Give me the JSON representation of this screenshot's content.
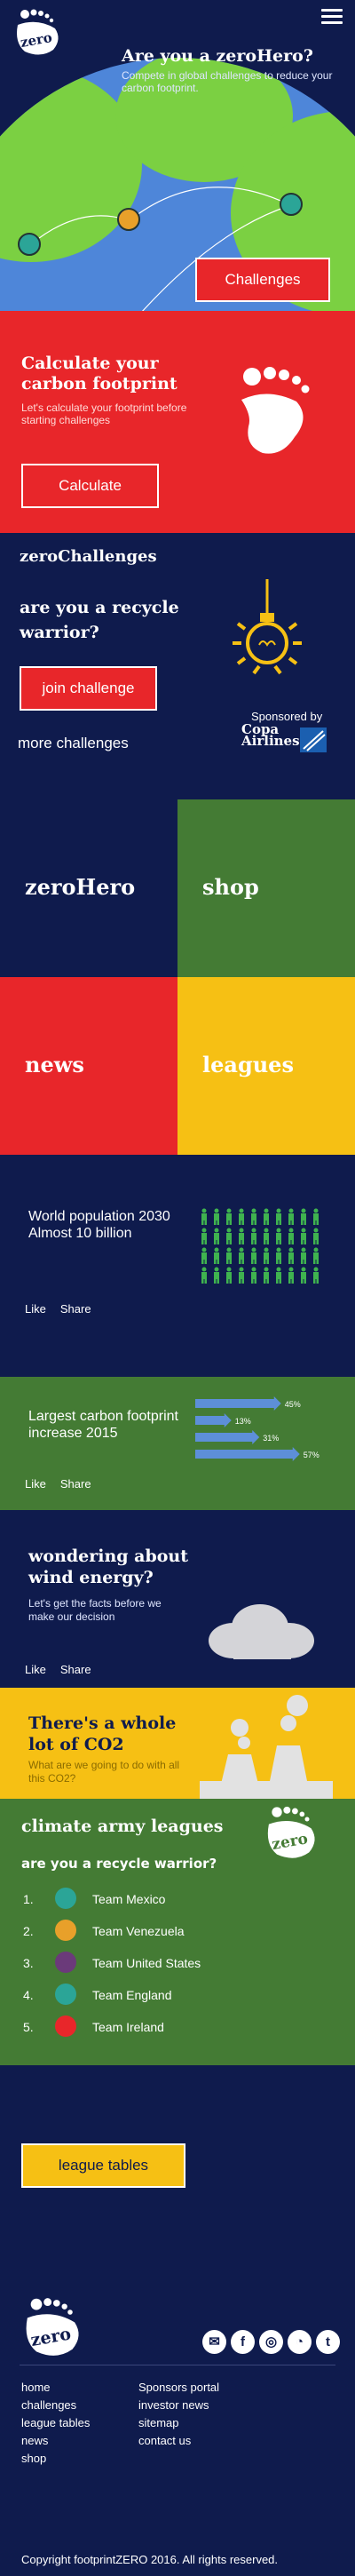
{
  "hero": {
    "title": "Are you a zeroHero?",
    "subtitle": "Compete in global challenges to reduce your carbon footprint.",
    "button": "Challenges"
  },
  "calculator": {
    "title_line1": "Calculate your",
    "title_line2": "carbon footprint",
    "description": "Let's calculate your footprint before starting challenges",
    "button": "Calculate"
  },
  "challenges": {
    "heading": "zeroChallenges",
    "question_line1": "are you a recycle",
    "question_line2": "warrior?",
    "button": "join challenge",
    "more": "more challenges",
    "sponsored_by": "Sponsored by",
    "sponsor_line1": "Copa",
    "sponsor_line2": "Airlines"
  },
  "tiles": [
    {
      "label": "zeroHero",
      "color": "#0f1b4d"
    },
    {
      "label": "shop",
      "color": "#447b34"
    },
    {
      "label": "news",
      "color": "#e8262a"
    },
    {
      "label": "leagues",
      "color": "#f6c014"
    }
  ],
  "cards": {
    "like": "Like",
    "share": "Share",
    "population": {
      "line1": "World population 2030",
      "line2": "Almost 10 billion"
    },
    "carbon": {
      "line1": "Largest carbon footprint",
      "line2": "increase 2015"
    },
    "wind": {
      "title_line1": "wondering about",
      "title_line2": "wind energy?",
      "text": "Let's get the facts before we make our decision"
    },
    "co2": {
      "title_line1": "There's a whole",
      "title_line2": "lot of CO2",
      "text": "What are we going to do with all this CO2?"
    }
  },
  "carbon_chart": {
    "type": "bar",
    "values": [
      45,
      13,
      31,
      57
    ],
    "value_labels": [
      "45%",
      "13%",
      "31%",
      "57%"
    ],
    "colors": {
      "bar": "#5d8fd8"
    }
  },
  "leagues": {
    "title": "climate army leagues",
    "question": "are you a recycle warrior?",
    "teams": [
      {
        "rank": "1.",
        "name": "Team Mexico",
        "color": "#2ba597"
      },
      {
        "rank": "2.",
        "name": "Team Venezuela",
        "color": "#e8a02a"
      },
      {
        "rank": "3.",
        "name": "Team United States",
        "color": "#6b3a7a"
      },
      {
        "rank": "4.",
        "name": "Team England",
        "color": "#2ba597"
      },
      {
        "rank": "5.",
        "name": "Team Ireland",
        "color": "#e8262a"
      }
    ],
    "button": "league tables"
  },
  "footer": {
    "links_left": [
      "home",
      "challenges",
      "league tables",
      "news",
      "shop"
    ],
    "links_right": [
      "Sponsors portal",
      "investor news",
      "sitemap",
      "contact us"
    ],
    "social_icons": [
      "email-icon",
      "facebook-icon",
      "instagram-icon",
      "rss-icon",
      "twitter-icon"
    ],
    "copyright": "Copyright footprintZERO 2016. All rights reserved."
  }
}
